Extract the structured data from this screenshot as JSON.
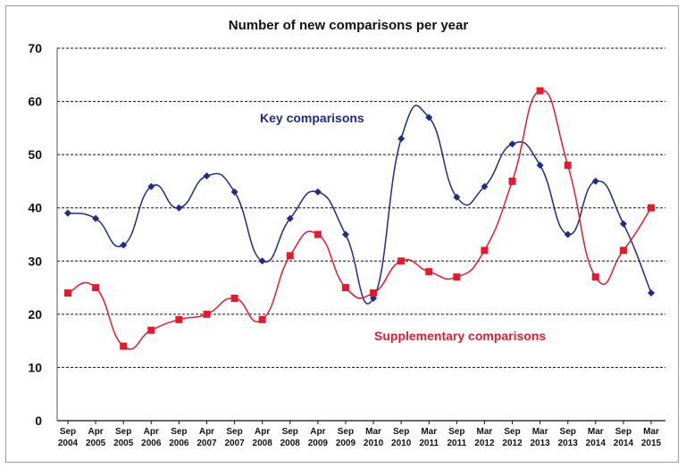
{
  "chart_data": {
    "type": "line",
    "title": "Number of new comparisons per year",
    "xlabel": "",
    "ylabel": "",
    "ylim": [
      0,
      70
    ],
    "yticks": [
      0,
      10,
      20,
      30,
      40,
      50,
      60,
      70
    ],
    "grid": true,
    "categories": [
      [
        "Sep",
        "2004"
      ],
      [
        "Apr",
        "2005"
      ],
      [
        "Sep",
        "2005"
      ],
      [
        "Apr",
        "2006"
      ],
      [
        "Sep",
        "2006"
      ],
      [
        "Apr",
        "2007"
      ],
      [
        "Sep",
        "2007"
      ],
      [
        "Apr",
        "2008"
      ],
      [
        "Sep",
        "2008"
      ],
      [
        "Apr",
        "2009"
      ],
      [
        "Sep",
        "2009"
      ],
      [
        "Mar",
        "2010"
      ],
      [
        "Sep",
        "2010"
      ],
      [
        "Mar",
        "2011"
      ],
      [
        "Sep",
        "2011"
      ],
      [
        "Mar",
        "2012"
      ],
      [
        "Sep",
        "2012"
      ],
      [
        "Mar",
        "2013"
      ],
      [
        "Sep",
        "2013"
      ],
      [
        "Mar",
        "2014"
      ],
      [
        "Sep",
        "2014"
      ],
      [
        "Mar",
        "2015"
      ]
    ],
    "series": [
      {
        "name": "Key comparisons",
        "color": "#1f2a8c",
        "marker": "diamond",
        "values": [
          39,
          38,
          33,
          44,
          40,
          46,
          43,
          30,
          38,
          43,
          35,
          23,
          53,
          57,
          42,
          44,
          52,
          48,
          35,
          45,
          37,
          24
        ]
      },
      {
        "name": "Supplementary comparisons",
        "color": "#e8192c",
        "marker": "square",
        "values": [
          24,
          25,
          14,
          17,
          19,
          20,
          23,
          19,
          31,
          35,
          25,
          24,
          30,
          28,
          27,
          32,
          45,
          62,
          48,
          27,
          32,
          40
        ]
      }
    ]
  }
}
